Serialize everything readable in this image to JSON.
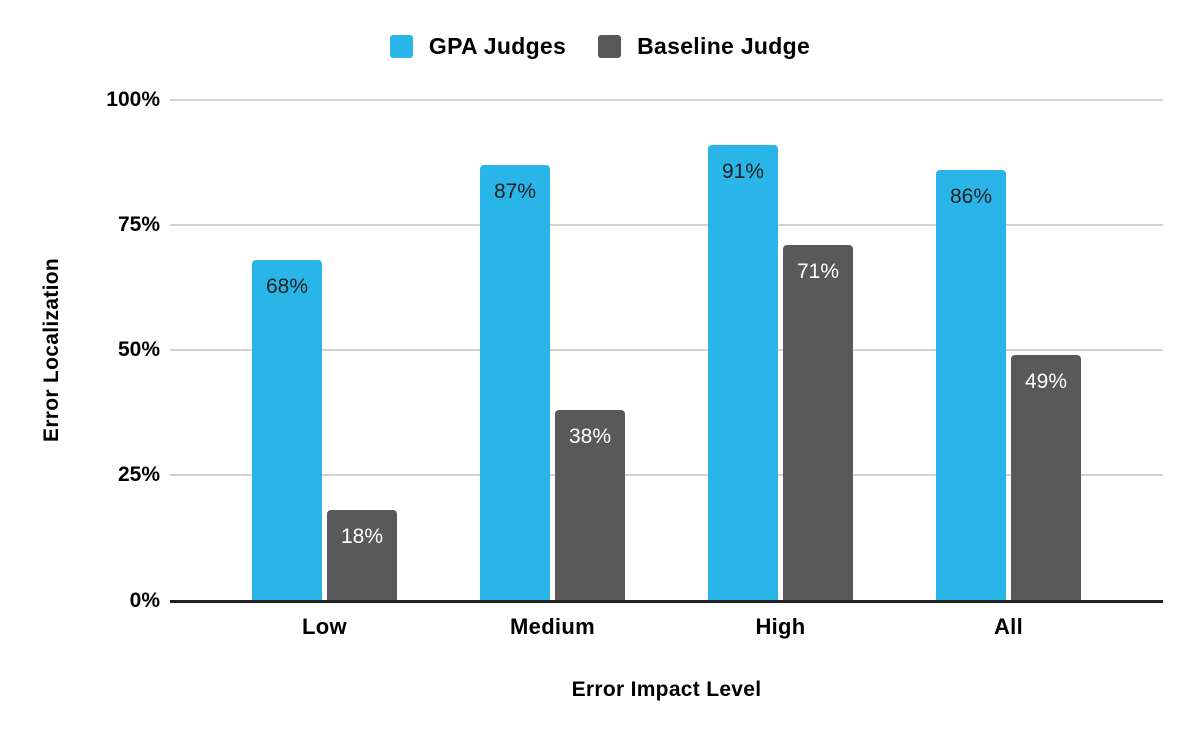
{
  "chart_data": {
    "type": "bar",
    "title": "",
    "categories": [
      "Low",
      "Medium",
      "High",
      "All"
    ],
    "series": [
      {
        "name": "GPA Judges",
        "color": "#29b5e8",
        "values": [
          68,
          87,
          91,
          86
        ],
        "labels": [
          "68%",
          "87%",
          "91%",
          "86%"
        ],
        "label_color": "#212121"
      },
      {
        "name": "Baseline Judge",
        "color": "#595959",
        "values": [
          18,
          38,
          71,
          49
        ],
        "labels": [
          "18%",
          "38%",
          "71%",
          "49%"
        ],
        "label_color": "#ffffff"
      }
    ],
    "xlabel": "Error Impact Level",
    "ylabel": "Error Localization",
    "y_ticks": [
      "0%",
      "25%",
      "50%",
      "75%",
      "100%"
    ],
    "ylim": [
      0,
      100
    ],
    "grid": true,
    "legend_position": "top",
    "axis_color": "#212121",
    "gridline_color": "#d3d3d3",
    "background_color": "#ffffff"
  }
}
